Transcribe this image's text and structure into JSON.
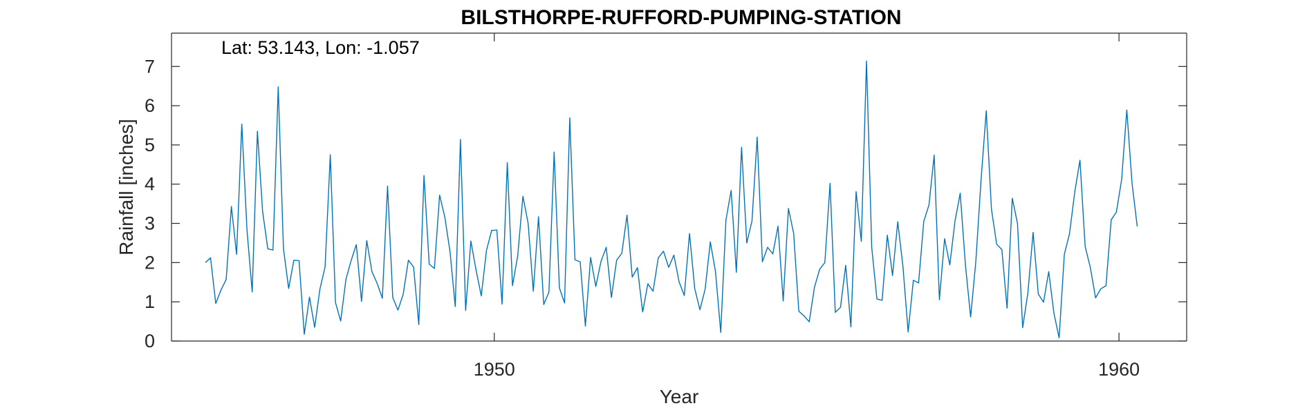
{
  "chart_data": {
    "type": "line",
    "title": "BILSTHORPE-RUFFORD-PUMPING-STATION",
    "annotation": "Lat: 53.143, Lon: -1.057",
    "xlabel": "Year",
    "ylabel": "Rainfall [inches]",
    "xlim": [
      1944.8333,
      1961.0833
    ],
    "ylim": [
      0,
      7.85
    ],
    "xticks": [
      1950,
      1960
    ],
    "yticks": [
      0,
      1,
      2,
      3,
      4,
      5,
      6,
      7
    ],
    "grid": false,
    "colors": {
      "line": "#0072BD",
      "axis": "#262626"
    },
    "series": [
      {
        "start_year": 1945.375,
        "step_years": 0.08333333,
        "values": [
          2.0,
          2.12,
          0.96,
          1.3,
          1.57,
          3.43,
          2.21,
          5.53,
          2.83,
          1.25,
          5.35,
          3.3,
          2.35,
          2.32,
          6.48,
          2.36,
          1.34,
          2.06,
          2.05,
          0.17,
          1.12,
          0.35,
          1.32,
          1.89,
          4.75,
          0.98,
          0.51,
          1.57,
          2.05,
          2.46,
          1.01,
          2.56,
          1.77,
          1.47,
          1.09,
          3.95,
          1.11,
          0.79,
          1.19,
          2.06,
          1.89,
          0.42,
          4.22,
          1.96,
          1.85,
          3.72,
          3.16,
          2.28,
          0.88,
          5.14,
          0.78,
          2.55,
          1.81,
          1.15,
          2.31,
          2.82,
          2.83,
          0.94,
          4.55,
          1.41,
          2.17,
          3.69,
          3.0,
          1.27,
          3.17,
          0.93,
          1.25,
          4.82,
          1.36,
          0.97,
          5.69,
          2.07,
          2.02,
          0.38,
          2.13,
          1.39,
          2.03,
          2.39,
          1.11,
          2.06,
          2.24,
          3.21,
          1.63,
          1.87,
          0.74,
          1.46,
          1.27,
          2.12,
          2.29,
          1.88,
          2.19,
          1.51,
          1.16,
          2.74,
          1.34,
          0.8,
          1.32,
          2.53,
          1.76,
          0.22,
          3.09,
          3.84,
          1.75,
          4.94,
          2.5,
          3.06,
          5.2,
          2.02,
          2.39,
          2.22,
          2.93,
          1.02,
          3.38,
          2.75,
          0.76,
          0.64,
          0.49,
          1.37,
          1.83,
          2.0,
          4.02,
          0.73,
          0.86,
          1.93,
          0.36,
          3.81,
          2.54,
          7.14,
          2.39,
          1.07,
          1.04,
          2.7,
          1.67,
          3.04,
          1.9,
          0.23,
          1.55,
          1.48,
          3.05,
          3.47,
          4.74,
          1.05,
          2.61,
          1.94,
          3.06,
          3.77,
          1.94,
          0.61,
          2.03,
          4.1,
          5.87,
          3.36,
          2.47,
          2.33,
          0.84,
          3.64,
          3.0,
          0.34,
          1.23,
          2.77,
          1.2,
          0.99,
          1.77,
          0.71,
          0.08,
          2.21,
          2.74,
          3.8,
          4.61,
          2.41,
          1.87,
          1.1,
          1.33,
          1.41,
          3.09,
          3.29,
          4.11,
          5.89,
          4.03,
          2.92
        ]
      }
    ]
  }
}
